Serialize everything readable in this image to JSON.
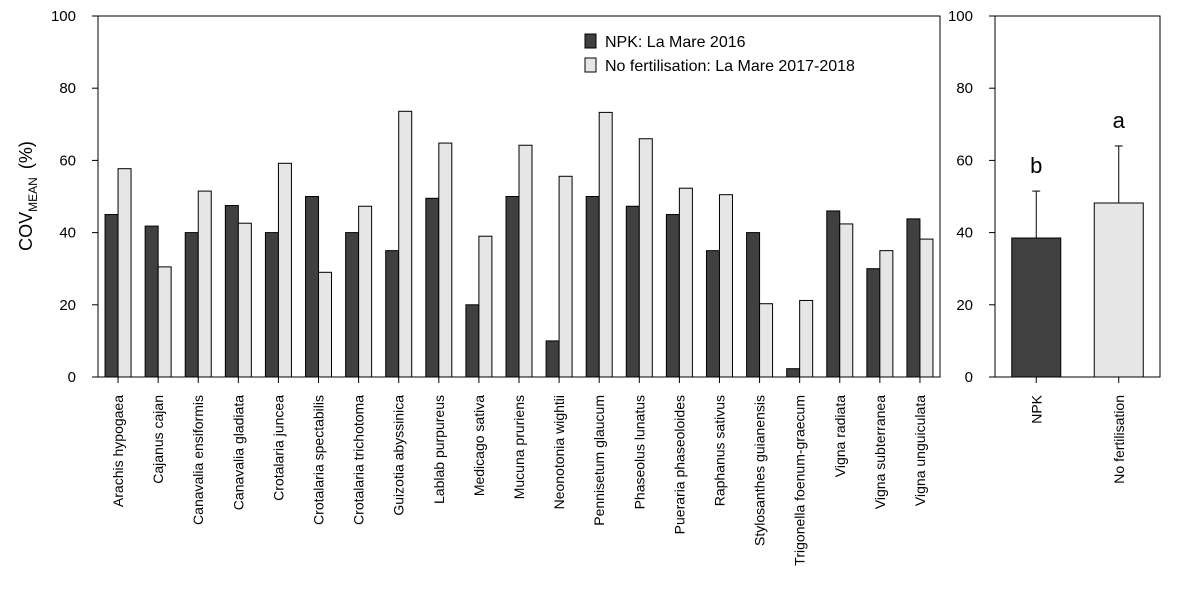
{
  "chart_data": [
    {
      "type": "bar",
      "y_label": "COV",
      "y_label_sub": "MEAN",
      "y_label_suffix": "(%)",
      "categories": [
        "Arachis hypogaea",
        "Cajanus cajan",
        "Canavalia ensiformis",
        "Canavalia gladiata",
        "Crotalaria juncea",
        "Crotalaria spectabilis",
        "Crotalaria trichotoma",
        "Guizotia abyssinica",
        "Lablab purpureus",
        "Medicago sativa",
        "Mucuna pruriens",
        "Neonotonia wightii",
        "Pennisetum glaucum",
        "Phaseolus lunatus",
        "Pueraria phaseoloides",
        "Raphanus sativus",
        "Stylosanthes guianensis",
        "Trigonella foenum-graecum",
        "Vigna radiata",
        "Vigna subterranea",
        "Vigna unguiculata"
      ],
      "series": [
        {
          "name": "NPK: La Mare 2016",
          "color": "#404040",
          "values": [
            45,
            41.8,
            40,
            47.5,
            40,
            50,
            40,
            35,
            49.5,
            20,
            50,
            10,
            50,
            47.3,
            45,
            35,
            40,
            2.3,
            46,
            30,
            43.8
          ]
        },
        {
          "name": "No fertilisation: La Mare 2017-2018",
          "color": "#e6e6e6",
          "values": [
            57.7,
            30.5,
            51.5,
            42.6,
            59.2,
            29,
            47.3,
            73.6,
            64.8,
            39,
            64.2,
            55.6,
            73.3,
            66,
            52.3,
            50.5,
            20.3,
            21.2,
            42.4,
            35,
            38.2
          ]
        }
      ],
      "ylim": [
        0,
        100
      ],
      "yticks": [
        0,
        20,
        40,
        60,
        80,
        100
      ],
      "legend": "top-right"
    },
    {
      "type": "bar",
      "categories": [
        "NPK",
        "No fertilisation"
      ],
      "values": [
        38.5,
        48.2
      ],
      "errors": [
        13,
        15.8
      ],
      "colors": [
        "#404040",
        "#e6e6e6"
      ],
      "annotations": [
        "b",
        "a"
      ],
      "ylim": [
        0,
        100
      ],
      "yticks": [
        0,
        20,
        40,
        60,
        80,
        100
      ]
    }
  ]
}
